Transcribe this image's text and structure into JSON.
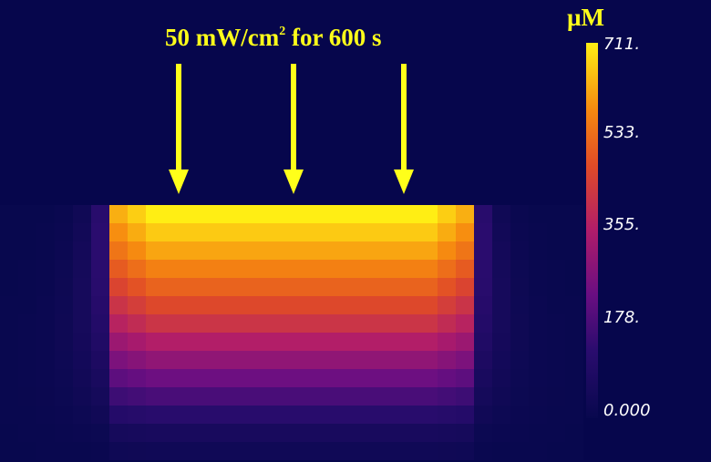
{
  "annotation": {
    "text_main": "50 mW/cm",
    "superscript": "2",
    "text_tail": " for 600 s",
    "arrow_color": "#ffff1a"
  },
  "chart_data": {
    "type": "heatmap",
    "title": "",
    "colorbar": {
      "unit": "µM",
      "min": 0,
      "max": 711,
      "tick_labels": [
        "711.",
        "533.",
        "355.",
        "178.",
        "0.000"
      ],
      "tick_values": [
        711,
        533,
        355,
        178,
        0
      ]
    },
    "grid": {
      "columns": 32,
      "rows": 14
    },
    "illuminated_columns": [
      6,
      25
    ],
    "concentration_profile": {
      "surface_value": 711,
      "rows_sampled": [
        0,
        2,
        4,
        6,
        8,
        10,
        12
      ],
      "values_center": [
        711,
        620,
        520,
        420,
        300,
        180,
        60
      ]
    }
  }
}
